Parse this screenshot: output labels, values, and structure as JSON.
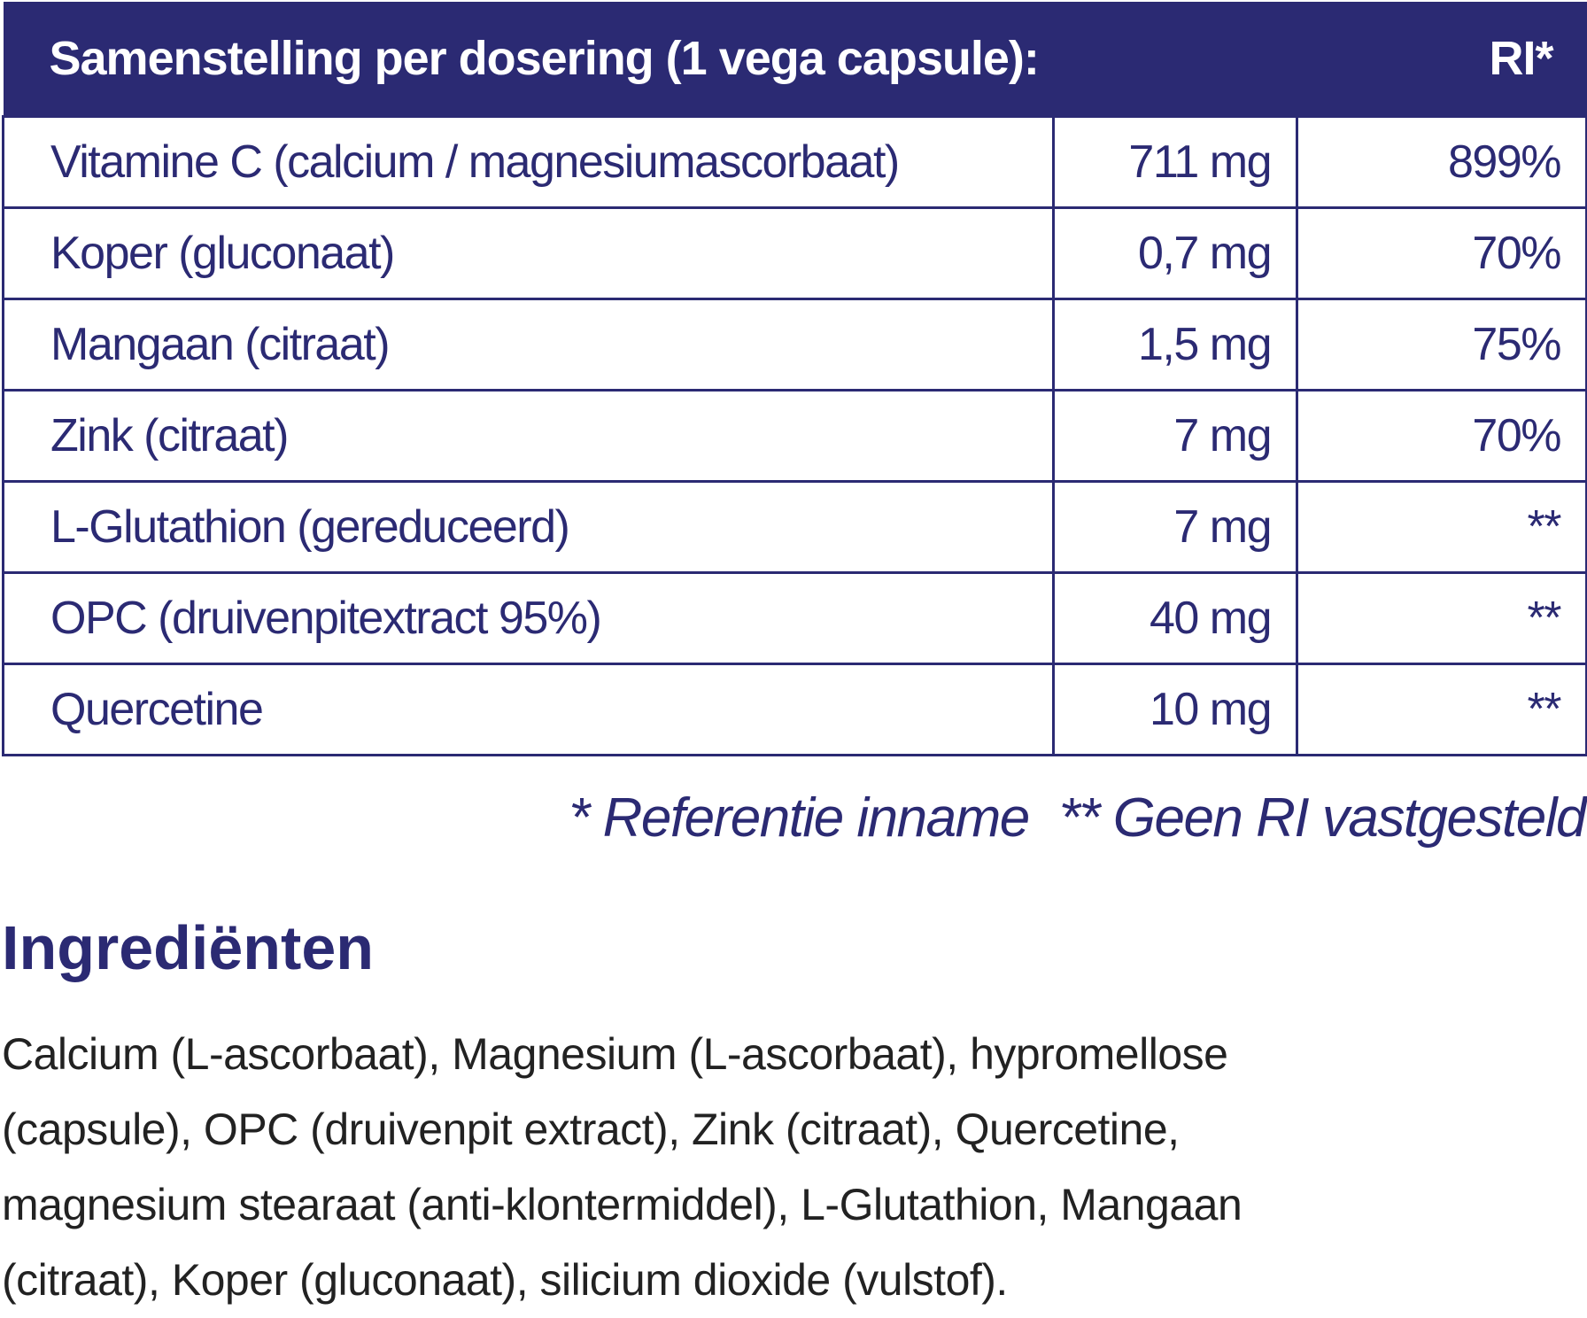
{
  "table": {
    "header": [
      "Samenstelling per dosering (1 vega capsule):",
      "RI*"
    ],
    "rows": [
      [
        "Vitamine C (calcium / magnesiumascorbaat)",
        "711 mg",
        "899%"
      ],
      [
        "Koper (gluconaat)",
        "0,7 mg",
        "70%"
      ],
      [
        "Mangaan (citraat)",
        "1,5 mg",
        "75%"
      ],
      [
        "Zink (citraat)",
        "7 mg",
        "70%"
      ],
      [
        "L-Glutathion (gereduceerd)",
        "7 mg",
        "**"
      ],
      [
        "OPC (druivenpitextract 95%)",
        "40 mg",
        "**"
      ],
      [
        "Quercetine",
        "10 mg",
        "**"
      ]
    ],
    "footnotes": [
      "* Referentie inname",
      "** Geen RI vastgesteld"
    ]
  },
  "ingredients": {
    "title": "Ingrediënten",
    "lines": [
      "Calcium (L-ascorbaat), Magnesium (L-ascorbaat), hypromellose",
      "(capsule), OPC (druivenpit extract), Zink (citraat), Quercetine,",
      "magnesium stearaat (anti-klontermiddel), L-Glutathion, Mangaan",
      "(citraat), Koper (gluconaat), silicium dioxide (vulstof)."
    ]
  }
}
